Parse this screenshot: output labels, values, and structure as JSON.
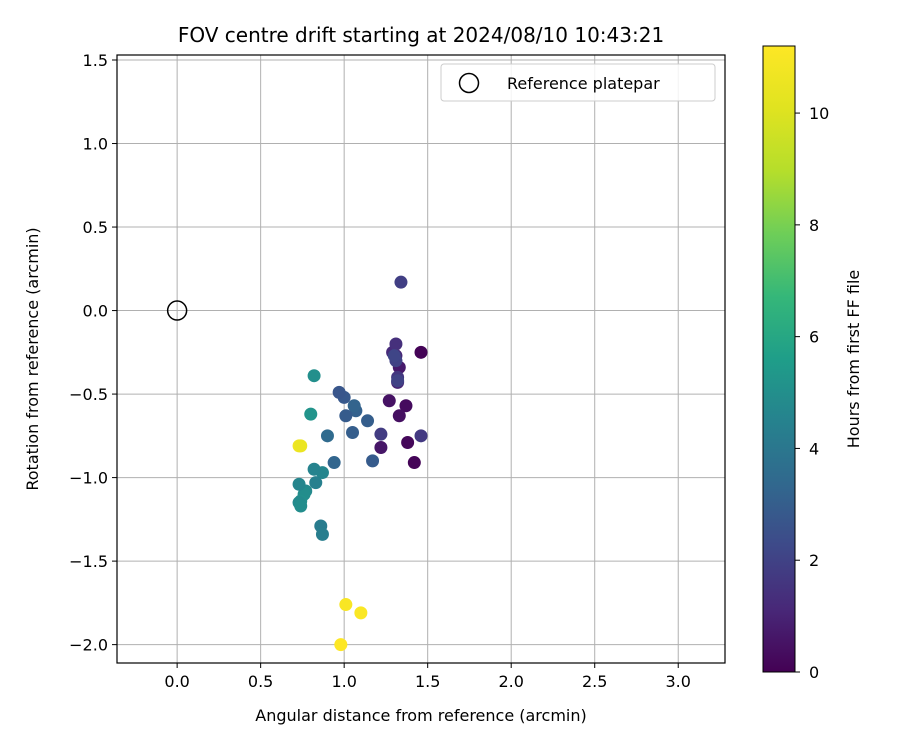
{
  "chart_data": {
    "type": "scatter",
    "title": "FOV centre drift starting at 2024/08/10 10:43:21",
    "xlabel": "Angular distance from reference (arcmin)",
    "ylabel": "Rotation from reference (arcmin)",
    "xlim": [
      -0.36,
      3.28
    ],
    "ylim": [
      -2.11,
      1.53
    ],
    "xticks": [
      "0.0",
      "0.5",
      "1.0",
      "1.5",
      "2.0",
      "2.5",
      "3.0"
    ],
    "xtick_values": [
      0,
      0.5,
      1,
      1.5,
      2,
      2.5,
      3
    ],
    "yticks": [
      "1.5",
      "1.0",
      "0.5",
      "0.0",
      "−0.5",
      "−1.0",
      "−1.5",
      "−2.0"
    ],
    "ytick_values": [
      1.5,
      1,
      0.5,
      0,
      -0.5,
      -1,
      -1.5,
      -2
    ],
    "grid": true,
    "legend": {
      "position": "top-right",
      "entries": [
        "Reference platepar"
      ]
    },
    "reference_point": {
      "x": 0.0,
      "y": 0.0
    },
    "colorbar": {
      "label": "Hours from first FF file",
      "min": 0,
      "max": 11.2,
      "ticks": [
        "0",
        "2",
        "4",
        "6",
        "8",
        "10"
      ],
      "tick_values": [
        0,
        2,
        4,
        6,
        8,
        10
      ],
      "colormap": "viridis"
    },
    "series": [
      {
        "x": [
          1.46,
          1.42,
          1.38,
          1.37,
          1.33,
          1.27,
          1.22,
          1.33,
          1.32,
          1.31,
          1.29,
          1.31,
          1.32,
          1.46,
          1.22,
          1.34,
          1.32,
          1.31,
          1.3,
          1.17,
          1.14,
          1.07,
          1.06,
          1.05,
          1.01,
          1.0,
          0.97,
          0.94,
          0.9,
          0.87,
          0.83,
          0.82,
          0.77,
          0.76,
          0.73,
          0.74,
          0.73,
          0.74,
          0.86,
          0.87,
          0.8,
          0.82,
          0.73,
          0.74,
          1.01,
          1.1,
          0.98
        ],
        "y": [
          -0.25,
          -0.91,
          -0.79,
          -0.57,
          -0.63,
          -0.54,
          -0.82,
          -0.34,
          -0.43,
          -0.27,
          -0.25,
          -0.2,
          -0.4,
          -0.75,
          -0.74,
          0.17,
          -0.42,
          -0.3,
          -0.27,
          -0.9,
          -0.66,
          -0.6,
          -0.57,
          -0.73,
          -0.63,
          -0.52,
          -0.49,
          -0.91,
          -0.75,
          -0.97,
          -1.03,
          -0.95,
          -1.08,
          -1.1,
          -1.04,
          -1.14,
          -1.15,
          -1.17,
          -1.29,
          -1.34,
          -0.62,
          -0.39,
          -0.81,
          -0.81,
          -1.76,
          -1.81,
          -2.0
        ],
        "hours": [
          0.05,
          0.1,
          0.2,
          0.3,
          0.4,
          0.5,
          0.6,
          0.7,
          1.0,
          1.1,
          1.2,
          1.4,
          1.6,
          1.7,
          1.8,
          1.9,
          2.0,
          2.0,
          2.1,
          2.9,
          3.0,
          3.1,
          3.2,
          3.0,
          2.9,
          2.8,
          2.7,
          3.3,
          3.5,
          4.6,
          4.4,
          4.5,
          4.8,
          4.9,
          4.6,
          5.0,
          4.8,
          4.9,
          4.2,
          4.3,
          5.2,
          5.0,
          10.7,
          10.5,
          11.0,
          11.1,
          11.2
        ]
      }
    ]
  }
}
